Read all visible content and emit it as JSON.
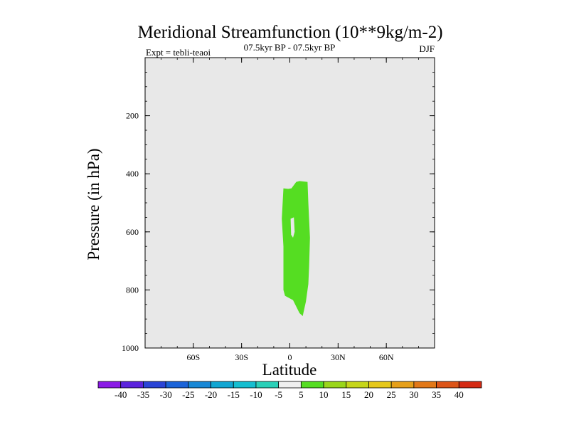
{
  "chart_data": {
    "type": "contour",
    "title": "Meridional Streamfunction (10**9kg/m-2)",
    "subtitle": "07.5kyr BP - 07.5kyr BP",
    "left_label": "Expt = tebli-teaoi",
    "right_label": "DJF",
    "xlabel": "Latitude",
    "ylabel": "Pressure (in hPa)",
    "xlim": [
      -90,
      90
    ],
    "ylim": [
      1000,
      0
    ],
    "x_ticks": [
      {
        "value": -60,
        "label": "60S"
      },
      {
        "value": -30,
        "label": "30S"
      },
      {
        "value": 0,
        "label": "0"
      },
      {
        "value": 30,
        "label": "30N"
      },
      {
        "value": 60,
        "label": "60N"
      }
    ],
    "y_ticks": [
      {
        "value": 200,
        "label": "200"
      },
      {
        "value": 400,
        "label": "400"
      },
      {
        "value": 600,
        "label": "600"
      },
      {
        "value": 800,
        "label": "800"
      },
      {
        "value": 1000,
        "label": "1000"
      }
    ],
    "background_color": "#e8e8e8",
    "contour_regions": [
      {
        "level": "5 to 10",
        "color": "#55dd22",
        "outline": [
          [
            -5,
            555
          ],
          [
            -4,
            450
          ],
          [
            -1,
            452
          ],
          [
            1,
            450
          ],
          [
            4,
            428
          ],
          [
            6,
            425
          ],
          [
            11,
            428
          ],
          [
            11.5,
            500
          ],
          [
            12.5,
            620
          ],
          [
            12,
            720
          ],
          [
            11.5,
            780
          ],
          [
            10,
            840
          ],
          [
            8,
            890
          ],
          [
            6,
            880
          ],
          [
            2,
            835
          ],
          [
            -3,
            820
          ],
          [
            -4,
            800
          ],
          [
            -4,
            650
          ],
          [
            -5,
            555
          ]
        ],
        "hole": [
          [
            0.5,
            555
          ],
          [
            2.5,
            550
          ],
          [
            3,
            600
          ],
          [
            2,
            620
          ],
          [
            0.8,
            610
          ],
          [
            0.5,
            555
          ]
        ]
      }
    ],
    "colorbar": {
      "labels": [
        "-40",
        "-35",
        "-30",
        "-25",
        "-20",
        "-15",
        "-10",
        "-5",
        "5",
        "10",
        "15",
        "20",
        "25",
        "30",
        "35",
        "40"
      ],
      "colors": [
        "#8b1ae6",
        "#5b22dd",
        "#2a44d6",
        "#1a63d8",
        "#1888d6",
        "#11a6d2",
        "#15bed0",
        "#2ad0b8",
        "#f0f0f0",
        "#55dd22",
        "#9ad61a",
        "#c6d61a",
        "#e6c81a",
        "#e6a01a",
        "#e27818",
        "#dc5418",
        "#d42a14"
      ]
    }
  }
}
